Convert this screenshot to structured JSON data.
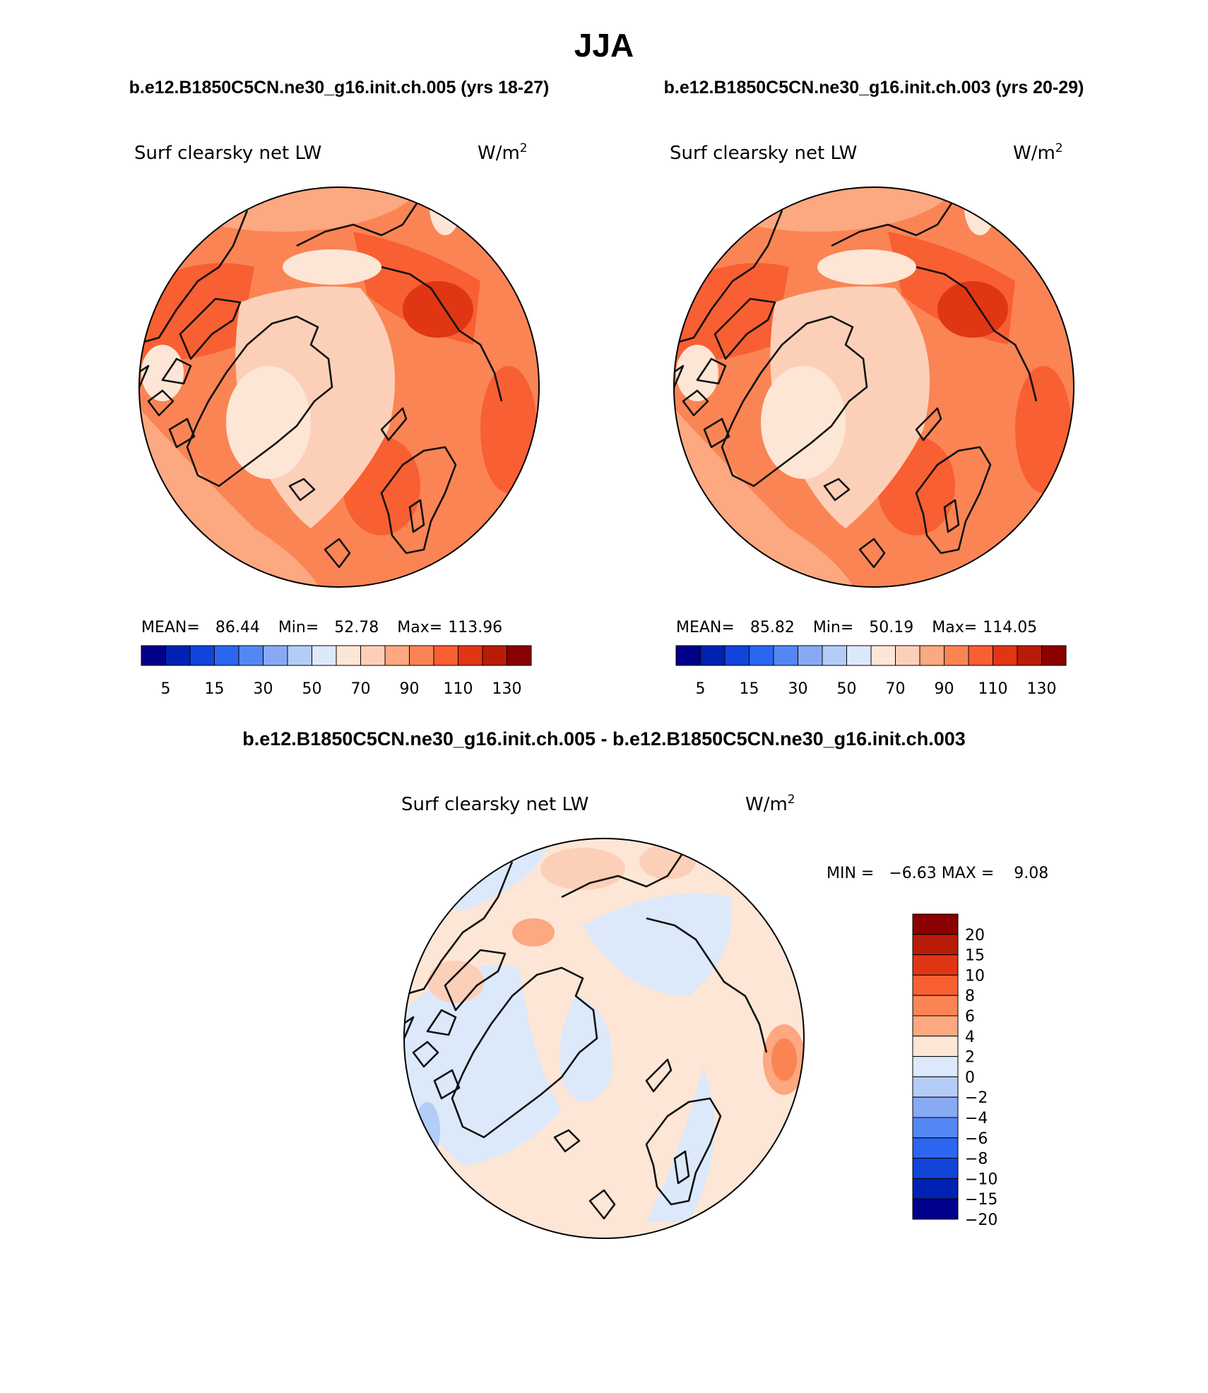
{
  "title": "JJA",
  "panels": [
    {
      "case_label": "b.e12.B1850C5CN.ne30_g16.init.ch.005 (yrs 18-27)",
      "variable": "Surf clearsky net LW",
      "units": "W/m",
      "units_sup": "2",
      "mean_label": "MEAN=",
      "mean": "86.44",
      "min_label": "Min=",
      "min": "52.78",
      "max_label": "Max=",
      "max": "113.96"
    },
    {
      "case_label": "b.e12.B1850C5CN.ne30_g16.init.ch.003 (yrs 20-29)",
      "variable": "Surf clearsky net LW",
      "units": "W/m",
      "units_sup": "2",
      "mean_label": "MEAN=",
      "mean": "85.82",
      "min_label": "Min=",
      "min": "50.19",
      "max_label": "Max=",
      "max": "114.05"
    }
  ],
  "field_colorbar": {
    "colors": [
      "#00008b",
      "#0022b4",
      "#1144d8",
      "#2a66f0",
      "#5388f4",
      "#88aaf5",
      "#b4cdf7",
      "#dbe9fb",
      "#fde6d6",
      "#fcd0b8",
      "#fca880",
      "#fb8455",
      "#f85f32",
      "#e03614",
      "#b81c08",
      "#8b0000"
    ],
    "tick_labels": [
      "5",
      "15",
      "30",
      "50",
      "70",
      "90",
      "110",
      "130"
    ]
  },
  "diff": {
    "title": "b.e12.B1850C5CN.ne30_g16.init.ch.005 - b.e12.B1850C5CN.ne30_g16.init.ch.003",
    "variable": "Surf clearsky net LW",
    "units": "W/m",
    "units_sup": "2",
    "minmax_text": "MIN =   −6.63 MAX =    9.08",
    "colorbar_colors_top_to_bottom": [
      "#8b0000",
      "#b81c08",
      "#e03614",
      "#f85f32",
      "#fb8455",
      "#fca880",
      "#fde6d6",
      "#dbe9fb",
      "#b4cdf7",
      "#88aaf5",
      "#5388f4",
      "#2a66f0",
      "#1144d8",
      "#0022b4",
      "#00008b"
    ],
    "colorbar_labels_top_to_bottom": [
      "20",
      "15",
      "10",
      "8",
      "6",
      "4",
      "2",
      "0",
      "−2",
      "−4",
      "−6",
      "−8",
      "−10",
      "−15",
      "−20"
    ]
  }
}
